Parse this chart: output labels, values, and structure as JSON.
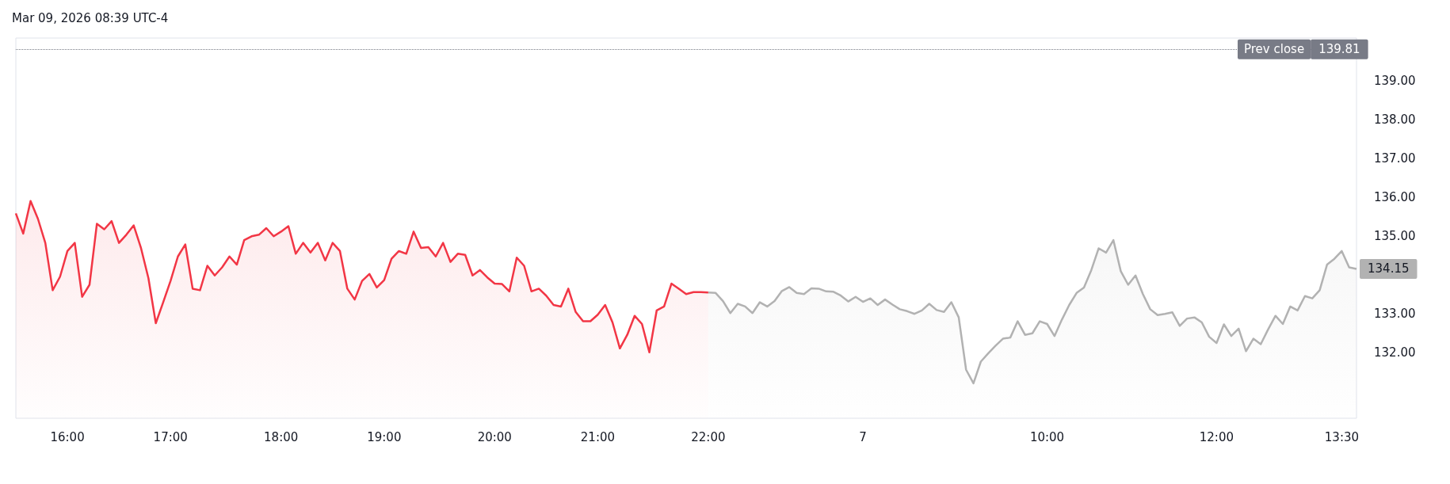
{
  "chart_data": {
    "type": "area",
    "annotations": [
      "Mar 09, 2026 08:39 UTC-4",
      {
        "text": "139.81",
        "y": 139.81
      }
    ],
    "categories": [
      null,
      null,
      null,
      null,
      null,
      null,
      null,
      "16:00",
      null,
      null,
      null,
      null,
      null,
      null,
      null,
      null,
      null,
      null,
      null,
      null,
      null,
      "17:00",
      null,
      null,
      null,
      null,
      null,
      null,
      null,
      null,
      null,
      null,
      null,
      null,
      null,
      null,
      "18:00",
      null,
      null,
      null,
      null,
      null,
      null,
      null,
      null,
      null,
      null,
      null,
      null,
      null,
      "19:00",
      null,
      null,
      null,
      null,
      null,
      null,
      null,
      null,
      null,
      null,
      null,
      null,
      null,
      null,
      "20:00",
      null,
      null,
      null,
      null,
      null,
      null,
      null,
      null,
      null,
      null,
      null,
      null,
      null,
      "21:00",
      null,
      null,
      null,
      null,
      null,
      null,
      null,
      null,
      null,
      null,
      null,
      null,
      null,
      null,
      "22:00",
      null,
      null,
      null,
      null,
      null,
      null,
      null,
      null,
      null,
      null,
      null,
      null,
      null,
      null,
      null,
      null,
      null,
      null,
      null,
      null,
      "7",
      null,
      null,
      null,
      null,
      null,
      null,
      null,
      null,
      null,
      null,
      null,
      null,
      null,
      null,
      null,
      null,
      null,
      null,
      null,
      null,
      null,
      null,
      null,
      null,
      "10:00",
      null,
      null,
      null,
      null,
      null,
      null,
      null,
      null,
      null,
      null,
      null,
      null,
      null,
      null,
      null,
      null,
      null,
      null,
      null,
      null,
      null,
      null,
      "12:00",
      null,
      null,
      null,
      null,
      null,
      null,
      null,
      null,
      null,
      null,
      null,
      null,
      null,
      null,
      null,
      null,
      "13:30",
      null,
      null
    ],
    "series": [
      {
        "color": "#f23645",
        "values": [
          135.58,
          135.06,
          135.9,
          135.44,
          134.82,
          133.6,
          133.95,
          134.61,
          134.82,
          133.43,
          133.74,
          135.31,
          135.17,
          135.38,
          134.82,
          135.03,
          135.27,
          134.68,
          133.91,
          132.75,
          133.29,
          133.84,
          134.47,
          134.78,
          133.64,
          133.6,
          134.23,
          133.98,
          134.19,
          134.47,
          134.26,
          134.89,
          134.99,
          135.03,
          135.2,
          134.99,
          135.11,
          135.25,
          134.54,
          134.82,
          134.57,
          134.82,
          134.37,
          134.82,
          134.61,
          133.64,
          133.36,
          133.84,
          134.02,
          133.67,
          133.86,
          134.41,
          134.61,
          134.54,
          135.11,
          134.69,
          134.71,
          134.47,
          134.82,
          134.33,
          134.54,
          134.51,
          133.98,
          134.12,
          133.93,
          133.77,
          133.76,
          133.57,
          134.44,
          134.23,
          133.57,
          133.64,
          133.46,
          133.22,
          133.18,
          133.64,
          133.04,
          132.8,
          132.8,
          132.97,
          133.22,
          132.77,
          132.1,
          132.45,
          132.94,
          132.73,
          132.0,
          133.08,
          133.18,
          133.77,
          133.64,
          133.5,
          133.55,
          133.55,
          133.54,
          null,
          null,
          null,
          null,
          null,
          null,
          null,
          null,
          null,
          null,
          null,
          null,
          null,
          null,
          null,
          null,
          null,
          null,
          null,
          null,
          null,
          null,
          null,
          null,
          null,
          null,
          null,
          null,
          null,
          null,
          null,
          null,
          null,
          null,
          null,
          null,
          null,
          null,
          null,
          null,
          null,
          null,
          null,
          null,
          null,
          null,
          null,
          null,
          null,
          null,
          null,
          null,
          null,
          null,
          null,
          null,
          null,
          null,
          null,
          null,
          null,
          null,
          null,
          null,
          null,
          null,
          null,
          null,
          null,
          null,
          null,
          null,
          null,
          null,
          null,
          null,
          null,
          null,
          null,
          null,
          null,
          null,
          null,
          null,
          null,
          null,
          null,
          null
        ]
      },
      {
        "color": "#b2b2b2",
        "values": [
          null,
          null,
          null,
          null,
          null,
          null,
          null,
          null,
          null,
          null,
          null,
          null,
          null,
          null,
          null,
          null,
          null,
          null,
          null,
          null,
          null,
          null,
          null,
          null,
          null,
          null,
          null,
          null,
          null,
          null,
          null,
          null,
          null,
          null,
          null,
          null,
          null,
          null,
          null,
          null,
          null,
          null,
          null,
          null,
          null,
          null,
          null,
          null,
          null,
          null,
          null,
          null,
          null,
          null,
          null,
          null,
          null,
          null,
          null,
          null,
          null,
          null,
          null,
          null,
          null,
          null,
          null,
          null,
          null,
          null,
          null,
          null,
          null,
          null,
          null,
          null,
          null,
          null,
          null,
          null,
          null,
          null,
          null,
          null,
          null,
          null,
          null,
          null,
          null,
          null,
          null,
          null,
          null,
          null,
          133.54,
          133.53,
          133.32,
          133.01,
          133.25,
          133.18,
          133.01,
          133.29,
          133.18,
          133.32,
          133.58,
          133.68,
          133.53,
          133.5,
          133.65,
          133.64,
          133.57,
          133.56,
          133.46,
          133.31,
          133.43,
          133.3,
          133.39,
          133.22,
          133.36,
          133.23,
          133.11,
          133.06,
          132.99,
          133.08,
          133.25,
          133.09,
          133.04,
          133.29,
          132.9,
          131.55,
          131.2,
          131.76,
          131.97,
          132.17,
          132.35,
          132.38,
          132.8,
          132.45,
          132.49,
          132.8,
          132.73,
          132.42,
          132.84,
          133.22,
          133.53,
          133.67,
          134.12,
          134.68,
          134.57,
          134.89,
          134.09,
          133.74,
          133.98,
          133.5,
          133.11,
          132.96,
          132.99,
          133.03,
          132.68,
          132.87,
          132.9,
          132.77,
          132.4,
          132.24,
          132.72,
          132.42,
          132.61,
          132.03,
          132.35,
          132.21,
          132.59,
          132.94,
          132.73,
          133.18,
          133.08,
          133.45,
          133.39,
          133.6,
          134.26,
          134.41,
          134.61,
          134.19,
          134.15
        ],
        "value_labels": [
          null,
          null,
          null,
          null,
          null,
          null,
          null,
          null,
          null,
          null,
          null,
          null,
          null,
          null,
          null,
          null,
          null,
          null,
          null,
          null,
          null,
          null,
          null,
          null,
          null,
          null,
          null,
          null,
          null,
          null,
          null,
          null,
          null,
          null,
          null,
          null,
          null,
          null,
          null,
          null,
          null,
          null,
          null,
          null,
          null,
          null,
          null,
          null,
          null,
          null,
          null,
          null,
          null,
          null,
          null,
          null,
          null,
          null,
          null,
          null,
          null,
          null,
          null,
          null,
          null,
          null,
          null,
          null,
          null,
          null,
          null,
          null,
          null,
          null,
          null,
          null,
          null,
          null,
          null,
          null,
          null,
          null,
          null,
          null,
          null,
          null,
          null,
          null,
          null,
          null,
          null,
          null,
          null,
          null,
          null,
          null,
          null,
          null,
          null,
          null,
          null,
          null,
          null,
          null,
          null,
          null,
          null,
          null,
          null,
          null,
          null,
          null,
          null,
          null,
          null,
          null,
          null,
          null,
          null,
          null,
          null,
          null,
          null,
          null,
          null,
          null,
          null,
          null,
          null,
          null,
          null,
          null,
          null,
          null,
          null,
          null,
          null,
          null,
          null,
          null,
          null,
          null,
          null,
          null,
          null,
          null,
          null,
          null,
          null,
          null,
          null,
          null,
          null,
          null,
          null,
          null,
          null,
          null,
          null,
          null,
          null,
          null,
          null,
          null,
          null,
          null,
          null,
          null,
          null,
          null,
          null,
          null,
          null,
          null,
          null,
          null,
          null,
          null,
          null,
          null,
          null,
          null,
          "134.15"
        ]
      }
    ],
    "ylim": [
      130.3,
      140.1
    ],
    "yticks": [
      {
        "value": 132,
        "label": "132.00"
      },
      {
        "value": 133,
        "label": "133.00"
      },
      {
        "value": 135,
        "label": "135.00"
      },
      {
        "value": 136,
        "label": "136.00"
      },
      {
        "value": 137,
        "label": "137.00"
      },
      {
        "value": 138,
        "label": "138.00"
      },
      {
        "value": 139,
        "label": "139.00"
      }
    ],
    "grid": false,
    "ref_lines": [
      {
        "axis": "y",
        "value": 139.81,
        "label": "Prev close",
        "color": "#787b86",
        "line_style": "dotted"
      }
    ]
  }
}
